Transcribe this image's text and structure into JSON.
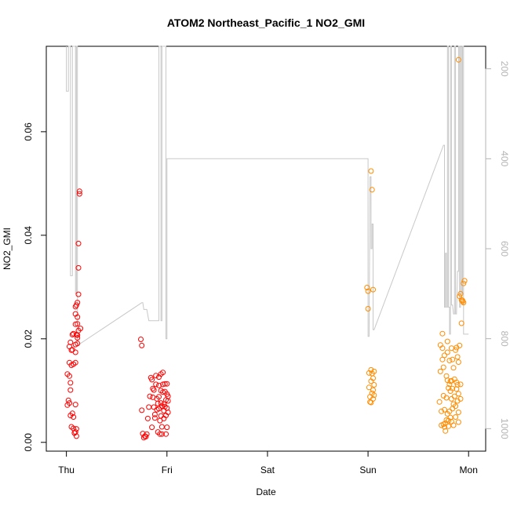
{
  "chart_data": {
    "type": "scatter",
    "title": "ATOM2 Northeast_Pacific_1 NO2_GMI",
    "xlabel": "Date",
    "ylabel": "NO2_GMI",
    "x_unit": "days (Thu 00:00 = 0)",
    "xlim": [
      -0.2,
      4.17
    ],
    "ylim": [
      -0.0017,
      0.0765
    ],
    "x_ticks": [
      {
        "value": 0,
        "label": "Thu"
      },
      {
        "value": 1,
        "label": "Fri"
      },
      {
        "value": 2,
        "label": "Sat"
      },
      {
        "value": 3,
        "label": "Sun"
      },
      {
        "value": 4,
        "label": "Mon"
      }
    ],
    "y_ticks": [
      {
        "value": 0.0,
        "label": "0.00"
      },
      {
        "value": 0.02,
        "label": "0.02"
      },
      {
        "value": 0.04,
        "label": "0.04"
      },
      {
        "value": 0.06,
        "label": "0.06"
      }
    ],
    "right_axis": {
      "color": "#b4b4b4",
      "range": [
        150,
        1050
      ],
      "ticks": [
        {
          "value": 200,
          "label": "200"
        },
        {
          "value": 400,
          "label": "400"
        },
        {
          "value": 600,
          "label": "600"
        },
        {
          "value": 800,
          "label": "800"
        },
        {
          "value": 1000,
          "label": "1000"
        }
      ]
    },
    "grid": false,
    "legend": "none",
    "series": [
      {
        "color": "#ff0000",
        "points": [
          [
            0.01,
            0.0132
          ],
          [
            0.02,
            0.0081
          ],
          [
            0.01,
            0.0072
          ],
          [
            0.03,
            0.0128
          ],
          [
            0.03,
            0.0154
          ],
          [
            0.03,
            0.0185
          ],
          [
            0.04,
            0.0193
          ],
          [
            0.04,
            0.0052
          ],
          [
            0.03,
            0.0076
          ],
          [
            0.04,
            0.0101
          ],
          [
            0.04,
            0.0115
          ],
          [
            0.05,
            0.0149
          ],
          [
            0.05,
            0.0178
          ],
          [
            0.05,
            0.003
          ],
          [
            0.06,
            0.0056
          ],
          [
            0.06,
            0.0179
          ],
          [
            0.06,
            0.0208
          ],
          [
            0.07,
            0.021
          ],
          [
            0.07,
            0.0151
          ],
          [
            0.07,
            0.0049
          ],
          [
            0.07,
            0.0027
          ],
          [
            0.08,
            0.0018
          ],
          [
            0.08,
            0.0018
          ],
          [
            0.09,
            0.0174
          ],
          [
            0.09,
            0.0189
          ],
          [
            0.09,
            0.0248
          ],
          [
            0.09,
            0.0262
          ],
          [
            0.09,
            0.0228
          ],
          [
            0.09,
            0.0154
          ],
          [
            0.09,
            0.0073
          ],
          [
            0.09,
            0.002
          ],
          [
            0.1,
            0.0265
          ],
          [
            0.1,
            0.0208
          ],
          [
            0.1,
            0.0026
          ],
          [
            0.1,
            0.0012
          ],
          [
            0.11,
            0.027
          ],
          [
            0.11,
            0.0229
          ],
          [
            0.11,
            0.0191
          ],
          [
            0.11,
            0.0242
          ],
          [
            0.11,
            0.0207
          ],
          [
            0.11,
            0.0202
          ],
          [
            0.12,
            0.0286
          ],
          [
            0.12,
            0.0216
          ],
          [
            0.12,
            0.0384
          ],
          [
            0.12,
            0.0337
          ],
          [
            0.13,
            0.0485
          ],
          [
            0.13,
            0.048
          ],
          [
            0.14,
            0.022
          ],
          [
            0.74,
            0.0199
          ],
          [
            0.75,
            0.0187
          ],
          [
            0.75,
            0.0062
          ],
          [
            0.76,
            0.0017
          ],
          [
            0.77,
            0.0009
          ],
          [
            0.78,
            0.0012
          ],
          [
            0.79,
            0.0011
          ],
          [
            0.8,
            0.0016
          ],
          [
            0.81,
            0.0046
          ],
          [
            0.82,
            0.0068
          ],
          [
            0.83,
            0.0089
          ],
          [
            0.84,
            0.0125
          ],
          [
            0.85,
            0.0121
          ],
          [
            0.85,
            0.0029
          ],
          [
            0.86,
            0.0087
          ],
          [
            0.86,
            0.0104
          ],
          [
            0.87,
            0.0101
          ],
          [
            0.87,
            0.0068
          ],
          [
            0.88,
            0.0054
          ],
          [
            0.88,
            0.0047
          ],
          [
            0.89,
            0.0112
          ],
          [
            0.89,
            0.0129
          ],
          [
            0.9,
            0.0063
          ],
          [
            0.9,
            0.0084
          ],
          [
            0.91,
            0.0075
          ],
          [
            0.91,
            0.002
          ],
          [
            0.92,
            0.0126
          ],
          [
            0.92,
            0.011
          ],
          [
            0.92,
            0.0088
          ],
          [
            0.92,
            0.0065
          ],
          [
            0.93,
            0.0042
          ],
          [
            0.93,
            0.0016
          ],
          [
            0.94,
            0.0132
          ],
          [
            0.94,
            0.01
          ],
          [
            0.94,
            0.0076
          ],
          [
            0.94,
            0.0051
          ],
          [
            0.95,
            0.007
          ],
          [
            0.95,
            0.003
          ],
          [
            0.95,
            0.0016
          ],
          [
            0.96,
            0.0135
          ],
          [
            0.96,
            0.0112
          ],
          [
            0.96,
            0.0097
          ],
          [
            0.97,
            0.0074
          ],
          [
            0.97,
            0.0061
          ],
          [
            0.97,
            0.0046
          ],
          [
            0.98,
            0.0113
          ],
          [
            0.98,
            0.0098
          ],
          [
            0.98,
            0.0069
          ],
          [
            0.99,
            0.0082
          ],
          [
            0.99,
            0.0052
          ],
          [
            0.99,
            0.0016
          ],
          [
            1.0,
            0.0113
          ],
          [
            1.0,
            0.0093
          ],
          [
            1.0,
            0.0066
          ],
          [
            1.0,
            0.0029
          ],
          [
            1.01,
            0.0089
          ],
          [
            1.01,
            0.0058
          ],
          [
            1.01,
            0.008
          ]
        ]
      },
      {
        "color": "#ff8c00",
        "points": [
          [
            2.99,
            0.0299
          ],
          [
            3.0,
            0.0292
          ],
          [
            3.0,
            0.0258
          ],
          [
            3.01,
            0.0134
          ],
          [
            3.01,
            0.0106
          ],
          [
            3.02,
            0.0088
          ],
          [
            3.02,
            0.0078
          ],
          [
            3.03,
            0.014
          ],
          [
            3.03,
            0.0118
          ],
          [
            3.03,
            0.0077
          ],
          [
            3.04,
            0.0133
          ],
          [
            3.04,
            0.0095
          ],
          [
            3.05,
            0.0124
          ],
          [
            3.05,
            0.0101
          ],
          [
            3.05,
            0.0084
          ],
          [
            3.06,
            0.0137
          ],
          [
            3.06,
            0.0111
          ],
          [
            3.06,
            0.0091
          ],
          [
            3.03,
            0.0524
          ],
          [
            3.04,
            0.0488
          ],
          [
            3.05,
            0.0295
          ],
          [
            3.71,
            0.0078
          ],
          [
            3.72,
            0.0188
          ],
          [
            3.72,
            0.0137
          ],
          [
            3.73,
            0.006
          ],
          [
            3.73,
            0.0033
          ],
          [
            3.74,
            0.021
          ],
          [
            3.74,
            0.0182
          ],
          [
            3.74,
            0.016
          ],
          [
            3.75,
            0.0145
          ],
          [
            3.75,
            0.009
          ],
          [
            3.75,
            0.0035
          ],
          [
            3.76,
            0.0168
          ],
          [
            3.76,
            0.0063
          ],
          [
            3.76,
            0.003
          ],
          [
            3.77,
            0.0037
          ],
          [
            3.77,
            0.0022
          ],
          [
            3.78,
            0.0128
          ],
          [
            3.78,
            0.0086
          ],
          [
            3.78,
            0.0043
          ],
          [
            3.79,
            0.0195
          ],
          [
            3.79,
            0.0174
          ],
          [
            3.79,
            0.012
          ],
          [
            3.79,
            0.0055
          ],
          [
            3.8,
            0.0105
          ],
          [
            3.8,
            0.0042
          ],
          [
            3.8,
            0.0031
          ],
          [
            3.81,
            0.0158
          ],
          [
            3.81,
            0.0112
          ],
          [
            3.81,
            0.006
          ],
          [
            3.82,
            0.0118
          ],
          [
            3.82,
            0.0099
          ],
          [
            3.82,
            0.0048
          ],
          [
            3.83,
            0.0182
          ],
          [
            3.83,
            0.0119
          ],
          [
            3.83,
            0.0084
          ],
          [
            3.83,
            0.004
          ],
          [
            3.84,
            0.016
          ],
          [
            3.84,
            0.0104
          ],
          [
            3.84,
            0.0065
          ],
          [
            3.85,
            0.0144
          ],
          [
            3.85,
            0.0074
          ],
          [
            3.85,
            0.0033
          ],
          [
            3.86,
            0.0122
          ],
          [
            3.86,
            0.0089
          ],
          [
            3.87,
            0.0178
          ],
          [
            3.87,
            0.007
          ],
          [
            3.87,
            0.0049
          ],
          [
            3.88,
            0.0183
          ],
          [
            3.88,
            0.0116
          ],
          [
            3.88,
            0.0103
          ],
          [
            3.89,
            0.0165
          ],
          [
            3.89,
            0.0111
          ],
          [
            3.89,
            0.008
          ],
          [
            3.9,
            0.0155
          ],
          [
            3.9,
            0.0094
          ],
          [
            3.9,
            0.0058
          ],
          [
            3.9,
            0.0039
          ],
          [
            3.91,
            0.0282
          ],
          [
            3.91,
            0.0187
          ],
          [
            3.92,
            0.0287
          ],
          [
            3.92,
            0.0112
          ],
          [
            3.92,
            0.0084
          ],
          [
            3.93,
            0.0275
          ],
          [
            3.93,
            0.023
          ],
          [
            3.94,
            0.0272
          ],
          [
            3.94,
            0.0274
          ],
          [
            3.95,
            0.027
          ],
          [
            3.95,
            0.0307
          ],
          [
            3.96,
            0.0312
          ],
          [
            3.9,
            0.0739
          ]
        ]
      }
    ],
    "line_series": {
      "color": "#c8c8c8",
      "axis": "right",
      "points": [
        [
          0.0,
          150
        ],
        [
          0.0,
          250
        ],
        [
          0.02,
          250
        ],
        [
          0.02,
          150
        ],
        [
          0.04,
          150
        ],
        [
          0.04,
          660
        ],
        [
          0.06,
          660
        ],
        [
          0.06,
          150
        ],
        [
          0.09,
          150
        ],
        [
          0.09,
          700
        ],
        [
          0.1,
          700
        ],
        [
          0.1,
          150
        ],
        [
          0.11,
          150
        ],
        [
          0.11,
          815
        ],
        [
          0.75,
          720
        ],
        [
          0.76,
          720
        ],
        [
          0.77,
          735
        ],
        [
          0.8,
          735
        ],
        [
          0.82,
          760
        ],
        [
          0.92,
          760
        ],
        [
          0.92,
          150
        ],
        [
          0.94,
          150
        ],
        [
          0.94,
          760
        ],
        [
          0.95,
          760
        ],
        [
          0.95,
          150
        ],
        [
          0.99,
          150
        ],
        [
          0.99,
          800
        ],
        [
          1.0,
          800
        ],
        [
          1.0,
          400
        ],
        [
          3.0,
          400
        ],
        [
          3.0,
          795
        ],
        [
          3.01,
          795
        ],
        [
          3.02,
          440
        ],
        [
          3.03,
          440
        ],
        [
          3.03,
          600
        ],
        [
          3.04,
          600
        ],
        [
          3.04,
          545
        ],
        [
          3.05,
          545
        ],
        [
          3.05,
          780
        ],
        [
          3.06,
          780
        ],
        [
          3.75,
          370
        ],
        [
          3.76,
          370
        ],
        [
          3.76,
          730
        ],
        [
          3.77,
          730
        ],
        [
          3.77,
          610
        ],
        [
          3.78,
          610
        ],
        [
          3.78,
          730
        ],
        [
          3.79,
          730
        ],
        [
          3.79,
          150
        ],
        [
          3.8,
          150
        ],
        [
          3.8,
          730
        ],
        [
          3.81,
          730
        ],
        [
          3.81,
          790
        ],
        [
          3.82,
          790
        ],
        [
          3.82,
          150
        ],
        [
          3.83,
          150
        ],
        [
          3.83,
          725
        ],
        [
          3.84,
          725
        ],
        [
          3.85,
          745
        ],
        [
          3.86,
          745
        ],
        [
          3.86,
          150
        ],
        [
          3.87,
          150
        ],
        [
          3.87,
          745
        ],
        [
          3.88,
          745
        ],
        [
          3.89,
          650
        ],
        [
          3.9,
          650
        ],
        [
          3.9,
          150
        ],
        [
          3.91,
          150
        ],
        [
          3.91,
          730
        ],
        [
          3.92,
          730
        ],
        [
          3.92,
          150
        ],
        [
          3.93,
          150
        ],
        [
          3.93,
          700
        ],
        [
          3.94,
          700
        ],
        [
          3.94,
          150
        ],
        [
          3.95,
          150
        ],
        [
          3.95,
          790
        ],
        [
          4.0,
          790
        ]
      ]
    }
  }
}
